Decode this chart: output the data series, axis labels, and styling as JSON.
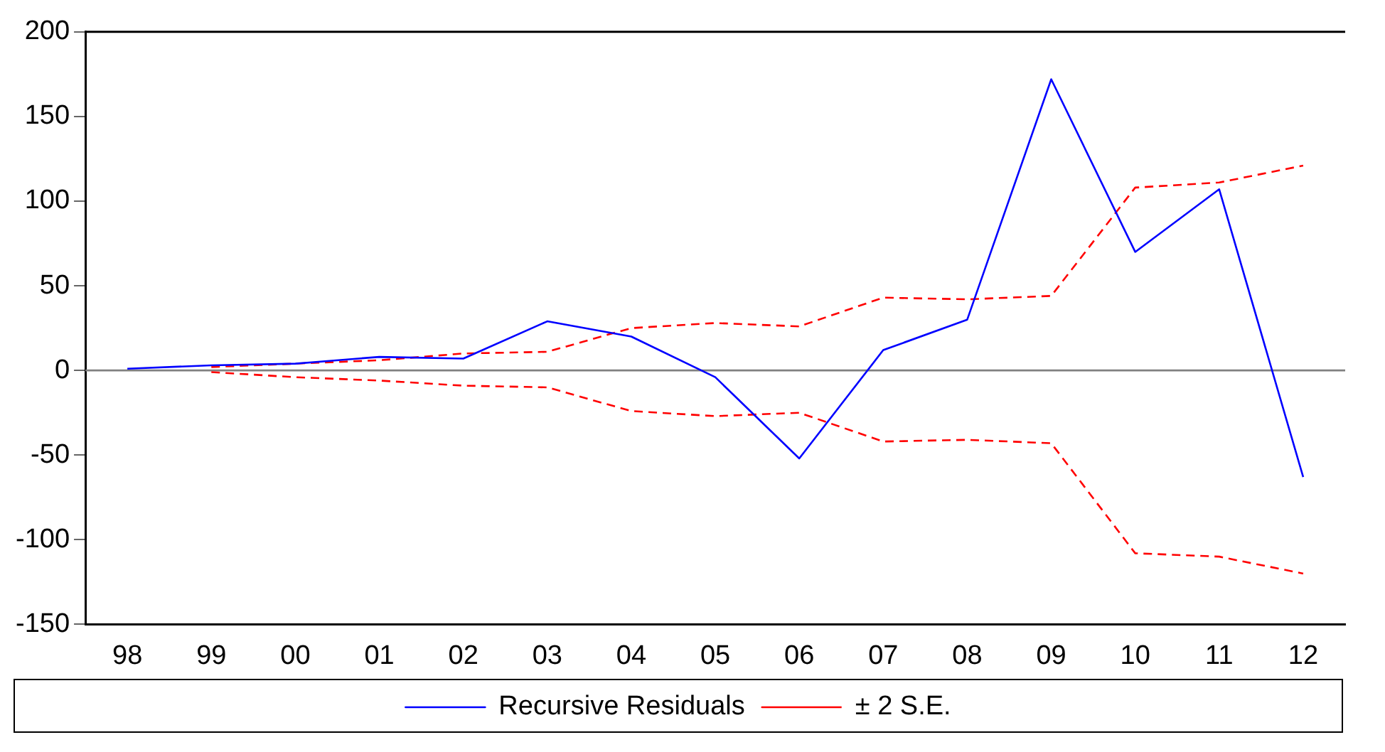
{
  "chart_data": {
    "type": "line",
    "categories": [
      "98",
      "99",
      "00",
      "01",
      "02",
      "03",
      "04",
      "05",
      "06",
      "07",
      "08",
      "09",
      "10",
      "11",
      "12"
    ],
    "series": [
      {
        "name": "Recursive Residuals",
        "color": "#0000ff",
        "line_style": "solid",
        "values": [
          1,
          3,
          4,
          8,
          7,
          29,
          20,
          -4,
          -52,
          12,
          30,
          172,
          70,
          107,
          -63
        ]
      },
      {
        "name": "± 2 S.E.",
        "color": "#ff0000",
        "line_style": "dashed",
        "values": [
          null,
          2,
          4,
          6,
          10,
          11,
          25,
          28,
          26,
          43,
          42,
          44,
          108,
          111,
          121
        ]
      },
      {
        "color": "#ff0000",
        "line_style": "dashed",
        "values": [
          null,
          -1,
          -4,
          -6,
          -9,
          -10,
          -24,
          -27,
          -25,
          -42,
          -41,
          -43,
          -108,
          -110,
          -120
        ]
      }
    ],
    "ylim": [
      -150,
      200
    ],
    "yticks": [
      -150,
      -100,
      -50,
      0,
      50,
      100,
      150,
      200
    ],
    "ref_lines": [
      {
        "axis": "y",
        "value": 0,
        "color": "#808080"
      }
    ],
    "grid": false,
    "legend": "bottom",
    "marker": "none"
  }
}
